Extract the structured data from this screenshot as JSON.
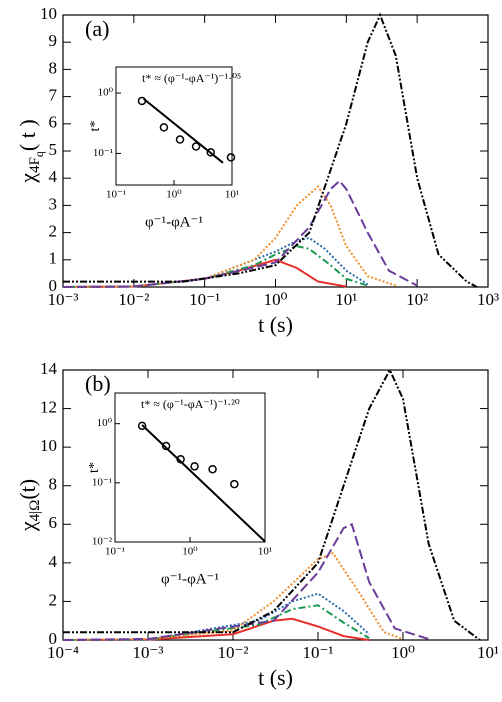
{
  "chart_data": [
    {
      "type": "line",
      "panel_label": "(a)",
      "xscale": "log",
      "xlim": [
        0.001,
        1000
      ],
      "ylim": [
        0,
        10
      ],
      "xticks": [
        {
          "value": 0.001,
          "label": "10⁻³"
        },
        {
          "value": 0.01,
          "label": "10⁻²"
        },
        {
          "value": 0.1,
          "label": "10⁻¹"
        },
        {
          "value": 1,
          "label": "10⁰"
        },
        {
          "value": 10,
          "label": "10¹"
        },
        {
          "value": 100,
          "label": "10²"
        },
        {
          "value": 1000,
          "label": "10³"
        }
      ],
      "yticks": [
        0,
        1,
        2,
        3,
        4,
        5,
        6,
        7,
        8,
        9,
        10
      ],
      "xlabel": "t (s)",
      "ylabel": {
        "main": "χ",
        "sub": "4F",
        "subsub": "q",
        "rest": "( t )"
      },
      "series": [
        {
          "color": "#e8312b",
          "linestyle": "solid",
          "x": [
            0.001,
            0.01,
            0.1,
            0.3,
            1,
            2,
            4,
            10
          ],
          "values": [
            0,
            0.02,
            0.3,
            0.6,
            1.0,
            0.7,
            0.2,
            0.02
          ]
        },
        {
          "color": "#1a9850",
          "linestyle": "dashdot",
          "x": [
            0.001,
            0.01,
            0.1,
            0.5,
            1,
            2,
            3,
            6,
            10,
            20
          ],
          "values": [
            0,
            0.02,
            0.3,
            0.8,
            1.2,
            1.5,
            1.4,
            0.8,
            0.3,
            0.05
          ]
        },
        {
          "color": "#2b6cb0",
          "linestyle": "dotted",
          "x": [
            0.001,
            0.01,
            0.1,
            1,
            2,
            3,
            5,
            10,
            20
          ],
          "values": [
            0,
            0.02,
            0.3,
            1.3,
            1.7,
            1.8,
            1.4,
            0.6,
            0.1
          ]
        },
        {
          "color": "#f28e2b",
          "linestyle": "dotted",
          "x": [
            0.001,
            0.01,
            0.1,
            0.5,
            1,
            2,
            4,
            6,
            10,
            20,
            50
          ],
          "values": [
            0,
            0.02,
            0.3,
            1.0,
            1.8,
            3.0,
            3.7,
            3.0,
            1.5,
            0.4,
            0.05
          ]
        },
        {
          "color": "#6a3d9a",
          "linestyle": "dashed",
          "x": [
            0.001,
            0.01,
            0.1,
            1,
            3,
            6,
            8,
            10,
            20,
            40,
            100
          ],
          "values": [
            0,
            0.02,
            0.3,
            0.9,
            2.2,
            3.6,
            3.9,
            3.6,
            2.0,
            0.6,
            0.05
          ]
        },
        {
          "color": "#000000",
          "linestyle": "dashdotdot",
          "x": [
            0.001,
            0.05,
            0.3,
            1,
            3,
            10,
            20,
            30,
            50,
            100,
            200,
            500,
            700
          ],
          "values": [
            0.2,
            0.2,
            0.5,
            0.8,
            2,
            6,
            9,
            10,
            8.5,
            4,
            1.2,
            0.2,
            0
          ]
        }
      ],
      "inset": {
        "type": "scatter",
        "xscale": "log",
        "yscale": "log",
        "xlim": [
          0.1,
          10
        ],
        "ylim": [
          0.03,
          2.7
        ],
        "xticks": [
          {
            "value": 0.1,
            "label": "10⁻¹"
          },
          {
            "value": 1,
            "label": "10⁰"
          },
          {
            "value": 10,
            "label": "10¹"
          }
        ],
        "yticks": [
          {
            "value": 0.1,
            "label": "10⁻¹"
          },
          {
            "value": 1,
            "label": "10⁰"
          }
        ],
        "xlabel": "φ⁻¹-φA⁻¹",
        "ylabel": "t*",
        "annotation": "t* ≈ (φ⁻¹-φA⁻¹)⁻¹·⁰⁵",
        "points": {
          "x": [
            0.28,
            0.67,
            1.27,
            2.4,
            4.3,
            9.6
          ],
          "values": [
            0.74,
            0.27,
            0.17,
            0.13,
            0.104,
            0.086
          ]
        },
        "fit": {
          "x": [
            0.3,
            7
          ],
          "values": [
            0.8,
            0.07
          ]
        }
      }
    },
    {
      "type": "line",
      "panel_label": "(b)",
      "xscale": "log",
      "xlim": [
        0.0001,
        10
      ],
      "ylim": [
        0,
        14
      ],
      "xticks": [
        {
          "value": 0.0001,
          "label": "10⁻⁴"
        },
        {
          "value": 0.001,
          "label": "10⁻³"
        },
        {
          "value": 0.01,
          "label": "10⁻²"
        },
        {
          "value": 0.1,
          "label": "10⁻¹"
        },
        {
          "value": 1,
          "label": "10⁰"
        },
        {
          "value": 10,
          "label": "10¹"
        }
      ],
      "yticks": [
        0,
        2,
        4,
        6,
        8,
        10,
        12,
        14
      ],
      "xlabel": "t (s)",
      "ylabel": {
        "main": "χ",
        "sub": "4|Ω",
        "rest": "(t)"
      },
      "series": [
        {
          "color": "#e8312b",
          "linestyle": "solid",
          "x": [
            0.0001,
            0.001,
            0.01,
            0.03,
            0.05,
            0.1,
            0.2,
            0.4
          ],
          "values": [
            0,
            0.02,
            0.3,
            1.0,
            1.1,
            0.7,
            0.2,
            0
          ]
        },
        {
          "color": "#1a9850",
          "linestyle": "dashdot",
          "x": [
            0.0001,
            0.001,
            0.02,
            0.05,
            0.1,
            0.2,
            0.4
          ],
          "values": [
            0,
            0.02,
            0.8,
            1.6,
            1.8,
            0.9,
            0.1
          ]
        },
        {
          "color": "#2b6cb0",
          "linestyle": "dotted",
          "x": [
            0.0001,
            0.001,
            0.02,
            0.05,
            0.1,
            0.2,
            0.4
          ],
          "values": [
            0,
            0.02,
            1.0,
            2.0,
            2.4,
            1.5,
            0.3
          ]
        },
        {
          "color": "#f28e2b",
          "linestyle": "dotted",
          "x": [
            0.0001,
            0.001,
            0.01,
            0.03,
            0.1,
            0.15,
            0.3,
            0.6,
            1
          ],
          "values": [
            0,
            0.05,
            0.5,
            2.0,
            4.2,
            4.5,
            2.5,
            0.4,
            0.05
          ]
        },
        {
          "color": "#6a3d9a",
          "linestyle": "dashed",
          "x": [
            0.0001,
            0.001,
            0.03,
            0.1,
            0.2,
            0.25,
            0.4,
            0.8,
            2
          ],
          "values": [
            0,
            0.05,
            1.0,
            3.5,
            5.8,
            6.0,
            3.0,
            0.6,
            0.05
          ]
        },
        {
          "color": "#000000",
          "linestyle": "dashdotdot",
          "x": [
            0.0001,
            0.01,
            0.03,
            0.1,
            0.2,
            0.4,
            0.7,
            1,
            2,
            4,
            8
          ],
          "values": [
            0.4,
            0.4,
            1.5,
            4,
            8,
            12,
            14,
            12.5,
            5,
            1,
            0
          ]
        }
      ],
      "inset": {
        "type": "scatter",
        "xscale": "log",
        "yscale": "log",
        "xlim": [
          0.1,
          10
        ],
        "ylim": [
          0.01,
          3.3
        ],
        "xticks": [
          {
            "value": 0.1,
            "label": "10⁻¹"
          },
          {
            "value": 1,
            "label": "10⁰"
          },
          {
            "value": 10,
            "label": "10¹"
          }
        ],
        "yticks": [
          {
            "value": 0.01,
            "label": "10⁻²"
          },
          {
            "value": 0.1,
            "label": "10⁻¹"
          },
          {
            "value": 1,
            "label": "10⁰"
          }
        ],
        "xlabel": "φ⁻¹-φA⁻¹",
        "ylabel": "t*",
        "annotation": "t* ≈ (φ⁻¹-φA⁻¹)⁻¹·²⁰",
        "points": {
          "x": [
            0.23,
            0.48,
            0.75,
            1.15,
            2.0,
            3.9
          ],
          "values": [
            0.92,
            0.42,
            0.25,
            0.19,
            0.17,
            0.095
          ]
        },
        "fit": {
          "x": [
            0.23,
            10
          ],
          "values": [
            0.95,
            0.0102
          ]
        }
      }
    }
  ]
}
